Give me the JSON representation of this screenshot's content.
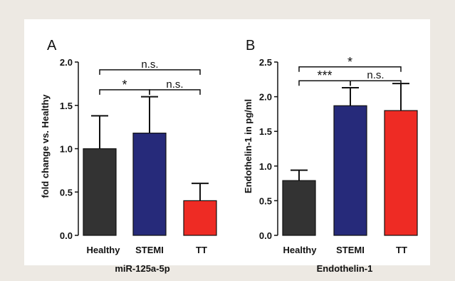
{
  "chart_data": [
    {
      "type": "bar",
      "panel_label": "A",
      "title": "",
      "xlabel": "miR-125a-5p",
      "ylabel": "fold change vs. Healthy",
      "ylim": [
        0,
        2.0
      ],
      "yticks": [
        0.0,
        0.5,
        1.0,
        1.5,
        2.0
      ],
      "ytick_labels": [
        "0.0",
        "0.5",
        "1.0",
        "1.5",
        "2.0"
      ],
      "categories": [
        "Healthy",
        "STEMI",
        "TT"
      ],
      "values": [
        1.0,
        1.18,
        0.4
      ],
      "errors": [
        0.38,
        0.42,
        0.2
      ],
      "colors": [
        "#333333",
        "#262a7a",
        "#ee2b24"
      ],
      "significance": [
        {
          "from": 0,
          "to": 2,
          "label": "n.s.",
          "y": 1.91
        },
        {
          "from": 0,
          "to": 1,
          "label": "*",
          "y": 1.68
        },
        {
          "from": 1,
          "to": 2,
          "label": "n.s.",
          "y": 1.68
        }
      ]
    },
    {
      "type": "bar",
      "panel_label": "B",
      "title": "",
      "xlabel": "Endothelin-1",
      "ylabel": "Endothelin-1 in pg/ml",
      "ylim": [
        0,
        2.5
      ],
      "yticks": [
        0.0,
        0.5,
        1.0,
        1.5,
        2.0,
        2.5
      ],
      "ytick_labels": [
        "0.0",
        "0.5",
        "1.0",
        "1.5",
        "2.0",
        "2.5"
      ],
      "categories": [
        "Healthy",
        "STEMI",
        "TT"
      ],
      "values": [
        0.79,
        1.87,
        1.8
      ],
      "errors": [
        0.15,
        0.26,
        0.39
      ],
      "colors": [
        "#333333",
        "#262a7a",
        "#ee2b24"
      ],
      "significance": [
        {
          "from": 0,
          "to": 2,
          "label": "*",
          "y": 2.43
        },
        {
          "from": 0,
          "to": 1,
          "label": "***",
          "y": 2.23
        },
        {
          "from": 1,
          "to": 2,
          "label": "n.s.",
          "y": 2.23
        }
      ]
    }
  ]
}
